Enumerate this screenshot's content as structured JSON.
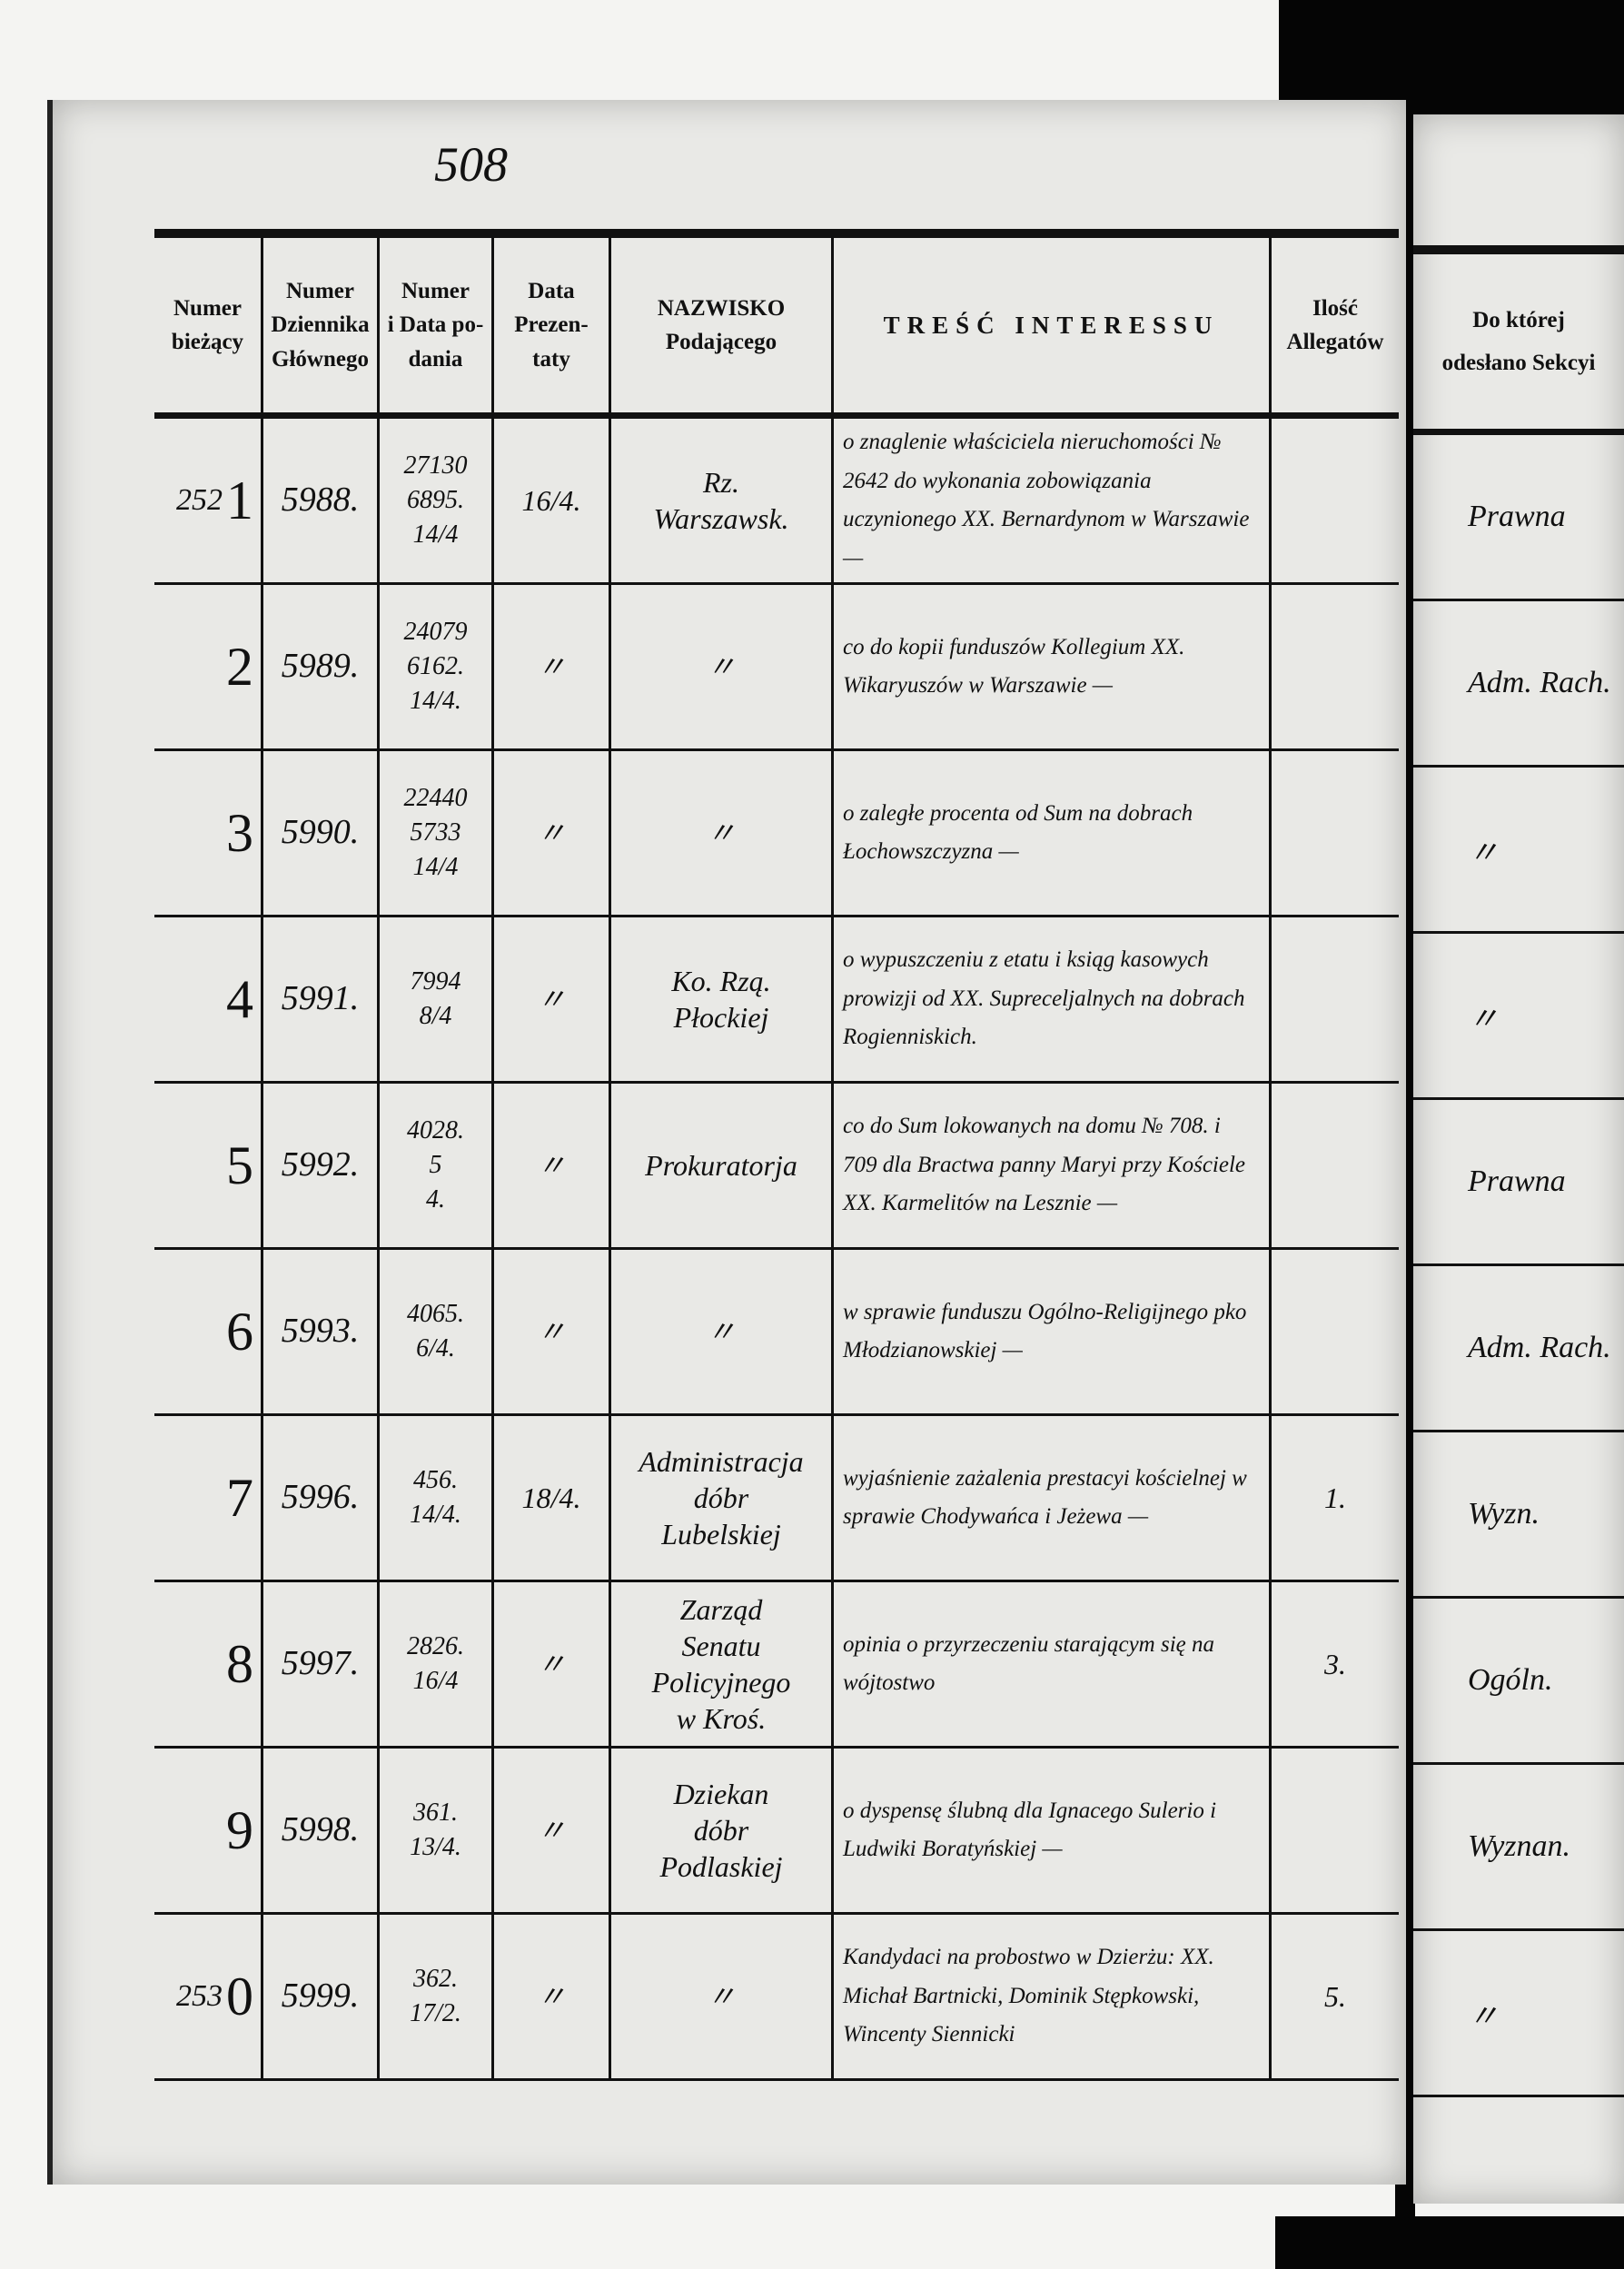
{
  "page_number": "508",
  "headers": [
    "Numer\nbieżący",
    "Numer\nDziennika\nGłównego",
    "Numer\ni Data po-\ndania",
    "Data\nPrezen-\ntaty",
    "NAZWISKO\nPodającego",
    "TREŚĆ INTERESSU",
    "Ilość\nAllegatów"
  ],
  "right_header": "Do której\nodesłano Sekcyi",
  "rows": [
    {
      "prefix": "252",
      "num": "1",
      "journal": "5988.",
      "filed": "27130\n6895.\n14/4",
      "presented": "16/4.",
      "name": "Rz.\nWarszawsk.",
      "content": "o znaglenie właściciela nieruchomości № 2642 do wykonania zobowiązania uczynionego XX. Bernardynom w Warszawie —",
      "attachments": "",
      "section": "Prawna"
    },
    {
      "prefix": "",
      "num": "2",
      "journal": "5989.",
      "filed": "24079\n6162.\n14/4.",
      "presented": "〃",
      "name": "〃",
      "content": "co do kopii funduszów Kollegium XX. Wikaryuszów w Warszawie —",
      "attachments": "",
      "section": "Adm. Rach."
    },
    {
      "prefix": "",
      "num": "3",
      "journal": "5990.",
      "filed": "22440\n5733\n14/4",
      "presented": "〃",
      "name": "〃",
      "content": "o zaległe procenta od Sum na dobrach Łochowszczyzna —",
      "attachments": "",
      "section": "〃"
    },
    {
      "prefix": "",
      "num": "4",
      "journal": "5991.",
      "filed": "7994\n8/4",
      "presented": "〃",
      "name": "Ko. Rzą.\nPłockiej",
      "content": "o wypuszczeniu z etatu i ksiąg kasowych prowizji od XX. Supreceljalnych na dobrach Rogienniskich.",
      "attachments": "",
      "section": "〃"
    },
    {
      "prefix": "",
      "num": "5",
      "journal": "5992.",
      "filed": "4028.\n5\n4.",
      "presented": "〃",
      "name": "Prokuratorja",
      "content": "co do Sum lokowanych na domu № 708. i 709 dla Bractwa panny Maryi przy Kościele XX. Karmelitów na Lesznie —",
      "attachments": "",
      "section": "Prawna"
    },
    {
      "prefix": "",
      "num": "6",
      "journal": "5993.",
      "filed": "4065.\n6/4.",
      "presented": "〃",
      "name": "〃",
      "content": "w sprawie funduszu Ogólno-Religijnego pko Młodzianowskiej —",
      "attachments": "",
      "section": "Adm. Rach."
    },
    {
      "prefix": "",
      "num": "7",
      "journal": "5996.",
      "filed": "456.\n14/4.",
      "presented": "18/4.",
      "name": "Administracja\ndóbr\nLubelskiej",
      "content": "wyjaśnienie zażalenia prestacyi kościelnej w sprawie Chodywańca i Jeżewa —",
      "attachments": "1.",
      "section": "Wyzn."
    },
    {
      "prefix": "",
      "num": "8",
      "journal": "5997.",
      "filed": "2826.\n16/4",
      "presented": "〃",
      "name": "Zarząd\nSenatu Policyjnego\nw Kroś.",
      "content": "opinia o przyrzeczeniu starającym się na wójtostwo",
      "attachments": "3.",
      "section": "Ogóln."
    },
    {
      "prefix": "",
      "num": "9",
      "journal": "5998.",
      "filed": "361.\n13/4.",
      "presented": "〃",
      "name": "Dziekan\ndóbr\nPodlaskiej",
      "content": "o dyspensę ślubną dla Ignacego Sulerio i Ludwiki Boratyńskiej —",
      "attachments": "",
      "section": "Wyznan."
    },
    {
      "prefix": "253",
      "num": "0",
      "journal": "5999.",
      "filed": "362.\n17/2.",
      "presented": "〃",
      "name": "〃",
      "content": "Kandydaci na probostwo w Dzierżu: XX. Michał Bartnicki, Dominik Stępkowski, Wincenty Siennicki",
      "attachments": "5.",
      "section": "〃"
    }
  ]
}
